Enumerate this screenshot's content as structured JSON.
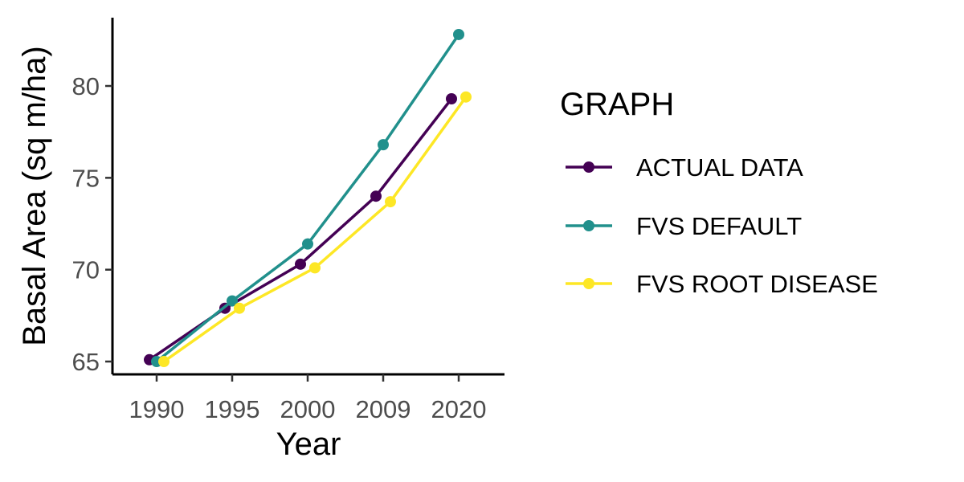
{
  "chart_data": {
    "type": "line",
    "title": "",
    "xlabel": "Year",
    "ylabel": "Basal Area (sq m/ha)",
    "categories": [
      "1990",
      "1995",
      "2000",
      "2009",
      "2020"
    ],
    "ylim": [
      64.5,
      83.1
    ],
    "yticks": [
      "65",
      "70",
      "75",
      "80"
    ],
    "grid": false,
    "legend": {
      "title": "GRAPH",
      "position": "right"
    },
    "series": [
      {
        "name": "ACTUAL DATA",
        "color": "#440154",
        "values": [
          65.1,
          67.9,
          70.3,
          74.0,
          79.3
        ]
      },
      {
        "name": "FVS DEFAULT",
        "color": "#21908C",
        "values": [
          65.0,
          68.3,
          71.4,
          76.8,
          82.8
        ]
      },
      {
        "name": "FVS ROOT DISEASE",
        "color": "#FDE725",
        "values": [
          65.0,
          67.9,
          70.1,
          73.7,
          79.4
        ]
      }
    ]
  }
}
